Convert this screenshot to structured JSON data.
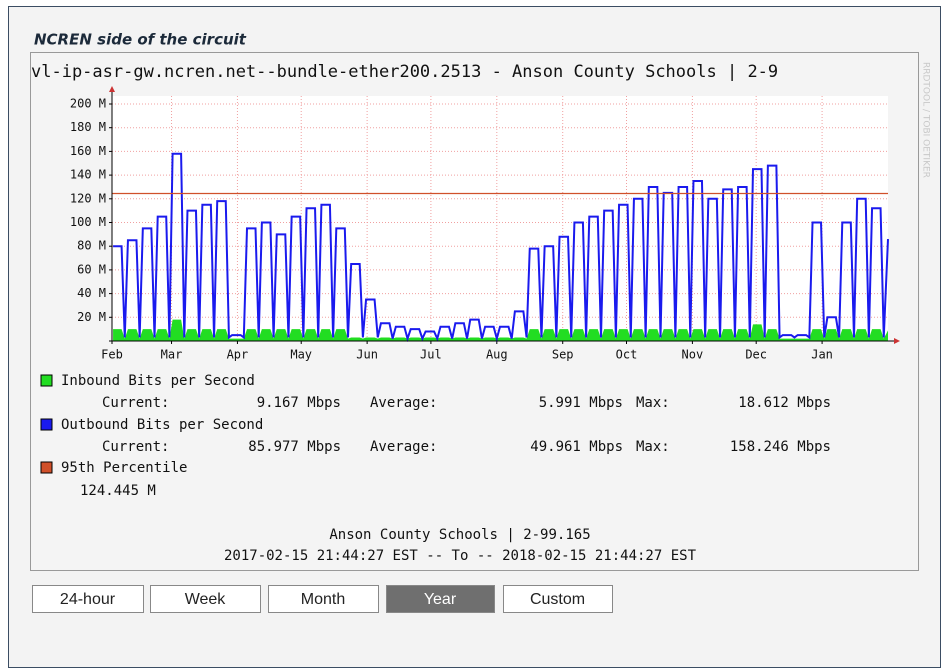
{
  "panel_title": "NCREN side of the circuit",
  "chart_data": {
    "type": "line",
    "title": "vl-ip-asr-gw.ncren.net--bundle-ether200.2513 - Anson County Schools | 2-9",
    "watermark": "RRDTOOL / TOBI OETIKER",
    "xlim": [
      0,
      365
    ],
    "xticks": [
      {
        "value": 0,
        "label": "Feb"
      },
      {
        "value": 28,
        "label": "Mar"
      },
      {
        "value": 59,
        "label": "Apr"
      },
      {
        "value": 89,
        "label": "May"
      },
      {
        "value": 120,
        "label": "Jun"
      },
      {
        "value": 150,
        "label": "Jul"
      },
      {
        "value": 181,
        "label": "Aug"
      },
      {
        "value": 212,
        "label": "Sep"
      },
      {
        "value": 242,
        "label": "Oct"
      },
      {
        "value": 273,
        "label": "Nov"
      },
      {
        "value": 303,
        "label": "Dec"
      },
      {
        "value": 334,
        "label": "Jan"
      }
    ],
    "ylim": [
      0,
      200
    ],
    "yticks": [
      {
        "value": 20,
        "label": "20 M"
      },
      {
        "value": 40,
        "label": "40 M"
      },
      {
        "value": 60,
        "label": "60 M"
      },
      {
        "value": 80,
        "label": "80 M"
      },
      {
        "value": 100,
        "label": "100 M"
      },
      {
        "value": 120,
        "label": "120 M"
      },
      {
        "value": 140,
        "label": "140 M"
      },
      {
        "value": 160,
        "label": "160 M"
      },
      {
        "value": 180,
        "label": "180 M"
      },
      {
        "value": 200,
        "label": "200 M"
      }
    ],
    "grid": true,
    "x": [
      0.5,
      4.5,
      6,
      7.5,
      11.5,
      13,
      14.5,
      18.5,
      20,
      21.5,
      25.5,
      27,
      28.5,
      32.5,
      34,
      35.5,
      39.5,
      41,
      42.5,
      46.5,
      48,
      49.5,
      53.5,
      55,
      56.5,
      60.5,
      62,
      63.5,
      67.5,
      69,
      70.5,
      74.5,
      76,
      77.5,
      81.5,
      83,
      84.5,
      88.5,
      90,
      91.5,
      95.5,
      97,
      98.5,
      102.5,
      104,
      105.5,
      109.5,
      111,
      112.5,
      116.5,
      118,
      119.5,
      123.5,
      125,
      126.5,
      130.5,
      132,
      133.5,
      137.5,
      139,
      140.5,
      144.5,
      146,
      147.5,
      151.5,
      153,
      154.5,
      158.5,
      160,
      161.5,
      165.5,
      167,
      168.5,
      172.5,
      174,
      175.5,
      179.5,
      181,
      182.5,
      186.5,
      188,
      189.5,
      193.5,
      195,
      196.5,
      200.5,
      202,
      203.5,
      207.5,
      209,
      210.5,
      214.5,
      216,
      217.5,
      221.5,
      223,
      224.5,
      228.5,
      230,
      231.5,
      235.5,
      237,
      238.5,
      242.5,
      244,
      245.5,
      249.5,
      251,
      252.5,
      256.5,
      258,
      259.5,
      263.5,
      265,
      266.5,
      270.5,
      272,
      273.5,
      277.5,
      279,
      280.5,
      284.5,
      286,
      287.5,
      291.5,
      293,
      294.5,
      298.5,
      300,
      301.5,
      305.5,
      307,
      308.5,
      312.5,
      314,
      315.5,
      319.5,
      321,
      322.5,
      326.5,
      328,
      329.5,
      333.5,
      335,
      336.5,
      340.5,
      342,
      343.5,
      347.5,
      349,
      350.5,
      354.5,
      356,
      357.5,
      361.5,
      363,
      365
    ],
    "stat_labels": {
      "current": "Current:",
      "average": "Average:",
      "max": "Max:"
    },
    "series": [
      {
        "name": "Inbound Bits per Second",
        "color": "#22dd22",
        "style": "area",
        "current": "9.167 Mbps",
        "average": "5.991 Mbps",
        "max": "18.612 Mbps",
        "values": [
          10,
          10,
          2,
          10,
          10,
          2,
          10,
          10,
          2,
          10,
          10,
          2,
          18,
          18,
          2,
          10,
          10,
          2,
          10,
          10,
          2,
          10,
          10,
          2,
          2,
          2,
          2,
          10,
          10,
          2,
          10,
          10,
          2,
          10,
          10,
          2,
          10,
          10,
          2,
          10,
          10,
          2,
          10,
          10,
          2,
          10,
          10,
          2,
          3,
          3,
          2,
          3,
          3,
          2,
          3,
          3,
          2,
          3,
          3,
          2,
          3,
          3,
          2,
          3,
          3,
          2,
          3,
          3,
          2,
          3,
          3,
          2,
          3,
          3,
          2,
          3,
          3,
          2,
          3,
          3,
          2,
          3,
          3,
          2,
          10,
          10,
          2,
          10,
          10,
          2,
          10,
          10,
          2,
          10,
          10,
          2,
          10,
          10,
          2,
          10,
          10,
          2,
          10,
          10,
          2,
          10,
          10,
          2,
          10,
          10,
          2,
          10,
          10,
          2,
          10,
          10,
          2,
          10,
          10,
          2,
          10,
          10,
          2,
          10,
          10,
          2,
          10,
          10,
          2,
          14,
          14,
          2,
          10,
          10,
          2,
          2,
          2,
          2,
          2,
          2,
          2,
          10,
          10,
          2,
          10,
          10,
          2,
          10,
          10,
          2,
          10,
          10,
          2,
          10,
          10,
          2,
          9
        ]
      },
      {
        "name": "Outbound Bits per Second",
        "color": "#1a1aee",
        "style": "line",
        "current": "85.977 Mbps",
        "average": "49.961 Mbps",
        "max": "158.246 Mbps",
        "values": [
          80,
          80,
          3,
          85,
          85,
          3,
          95,
          95,
          3,
          105,
          105,
          3,
          158,
          158,
          3,
          110,
          110,
          3,
          115,
          115,
          3,
          118,
          118,
          3,
          5,
          5,
          3,
          95,
          95,
          3,
          100,
          100,
          3,
          90,
          90,
          3,
          105,
          105,
          3,
          112,
          112,
          3,
          115,
          115,
          3,
          95,
          95,
          3,
          65,
          65,
          3,
          35,
          35,
          3,
          15,
          15,
          2,
          12,
          12,
          2,
          10,
          10,
          2,
          8,
          8,
          2,
          12,
          12,
          2,
          15,
          15,
          2,
          18,
          18,
          2,
          12,
          12,
          2,
          12,
          12,
          2,
          25,
          25,
          3,
          78,
          78,
          3,
          80,
          80,
          3,
          88,
          88,
          3,
          100,
          100,
          3,
          105,
          105,
          3,
          110,
          110,
          3,
          115,
          115,
          3,
          120,
          120,
          3,
          130,
          130,
          3,
          125,
          125,
          3,
          130,
          130,
          3,
          135,
          135,
          3,
          120,
          120,
          3,
          128,
          128,
          3,
          130,
          130,
          3,
          145,
          145,
          3,
          148,
          148,
          3,
          5,
          5,
          3,
          5,
          5,
          3,
          100,
          100,
          3,
          20,
          20,
          3,
          100,
          100,
          3,
          120,
          120,
          3,
          112,
          112,
          3,
          86
        ]
      }
    ],
    "percentile": {
      "name": "95th Percentile",
      "value": 124.445,
      "value_label": "124.445 M",
      "color": "#d0502a"
    },
    "footer": [
      "Anson County Schools | 2-99.165",
      "2017-02-15 21:44:27 EST -- To -- 2018-02-15 21:44:27 EST"
    ]
  },
  "buttons": [
    {
      "label": "24-hour"
    },
    {
      "label": "Week"
    },
    {
      "label": "Month"
    },
    {
      "label": "Year",
      "active": true
    },
    {
      "label": "Custom"
    }
  ]
}
